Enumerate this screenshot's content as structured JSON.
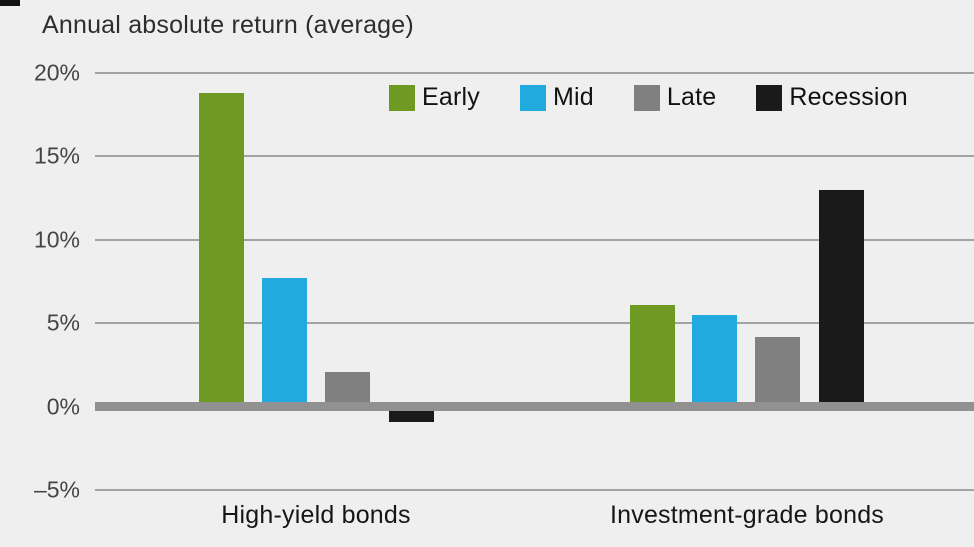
{
  "chart_data": {
    "type": "bar",
    "title": "Annual absolute return (average)",
    "categories": [
      "High-yield bonds",
      "Investment-grade bonds"
    ],
    "series": [
      {
        "name": "Early",
        "color": "#6e9a23",
        "values": [
          18.8,
          6.1
        ]
      },
      {
        "name": "Mid",
        "color": "#21aade",
        "values": [
          7.7,
          5.5
        ]
      },
      {
        "name": "Late",
        "color": "#808080",
        "values": [
          2.1,
          4.2
        ]
      },
      {
        "name": "Recession",
        "color": "#1a1a1a",
        "values": [
          -0.9,
          13.0
        ]
      }
    ],
    "y_ticks": [
      {
        "value": 20,
        "label": "20%"
      },
      {
        "value": 15,
        "label": "15%"
      },
      {
        "value": 10,
        "label": "10%"
      },
      {
        "value": 5,
        "label": "5%"
      },
      {
        "value": 0,
        "label": "0%"
      },
      {
        "value": -5,
        "label": "–5%"
      }
    ],
    "ylim": [
      -5,
      20
    ],
    "ylabel": "",
    "xlabel": "",
    "grid": true,
    "legend_position": "top-right",
    "zero_line": true
  },
  "colors": {
    "background": "#efefef",
    "gridline": "#a3a3a3",
    "zero_line": "#919191",
    "title_text": "#2d2d2d",
    "tick_text": "#454545",
    "category_text": "#161616",
    "legend_text": "#111111"
  }
}
